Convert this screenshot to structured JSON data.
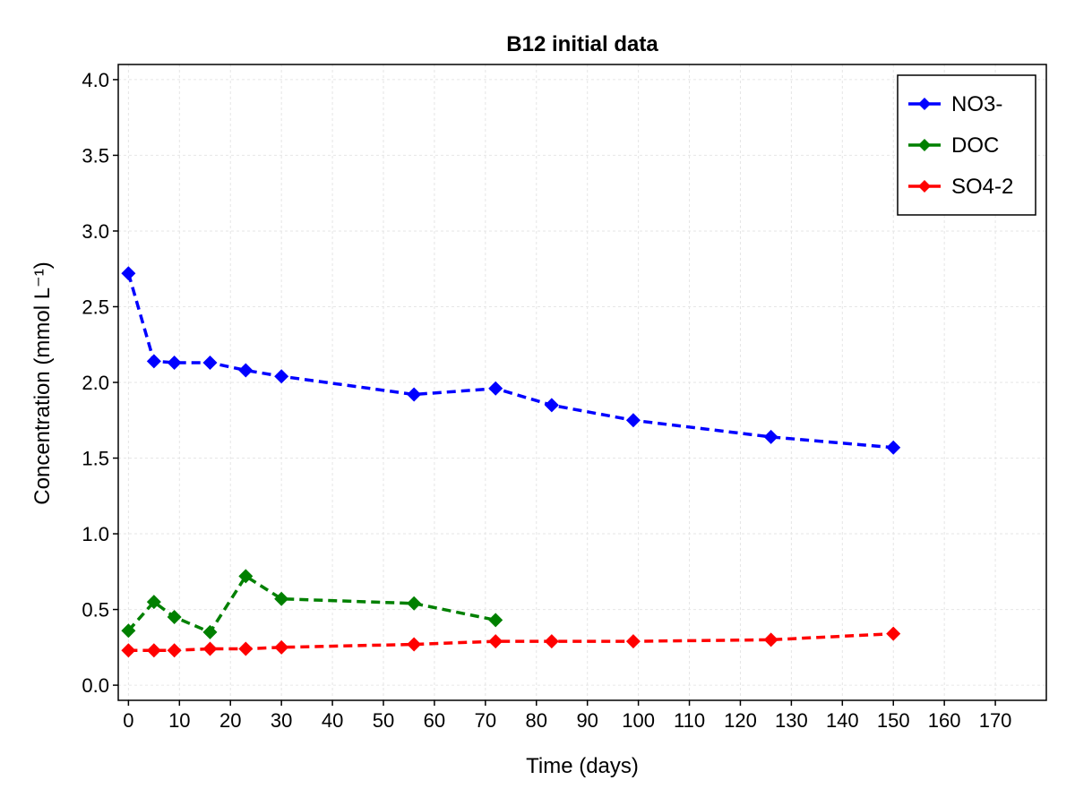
{
  "chart_data": {
    "type": "line",
    "title": "B12 initial data",
    "xlabel": "Time (days)",
    "ylabel": "Concentration (mmol L⁻¹)",
    "xlim": [
      -2,
      180
    ],
    "ylim": [
      -0.1,
      4.1
    ],
    "xticks": [
      0,
      10,
      20,
      30,
      40,
      50,
      60,
      70,
      80,
      90,
      100,
      110,
      120,
      130,
      140,
      150,
      160,
      170
    ],
    "yticks": [
      0.0,
      0.5,
      1.0,
      1.5,
      2.0,
      2.5,
      3.0,
      3.5,
      4.0
    ],
    "ytick_labels": [
      "0.0",
      "0.5",
      "1.0",
      "1.5",
      "2.0",
      "2.5",
      "3.0",
      "3.5",
      "4.0"
    ],
    "grid": true,
    "legend_position": "top-right",
    "series": [
      {
        "name": "NO3-",
        "color": "#0000ff",
        "x": [
          0,
          5,
          9,
          16,
          23,
          30,
          56,
          72,
          83,
          99,
          126,
          150
        ],
        "y": [
          2.72,
          2.14,
          2.13,
          2.13,
          2.08,
          2.04,
          1.92,
          1.96,
          1.85,
          1.75,
          1.64,
          1.57
        ]
      },
      {
        "name": "DOC",
        "color": "#008000",
        "x": [
          0,
          5,
          9,
          16,
          23,
          30,
          56,
          72
        ],
        "y": [
          0.36,
          0.55,
          0.45,
          0.35,
          0.72,
          0.57,
          0.54,
          0.43
        ]
      },
      {
        "name": "SO4-2",
        "color": "#ff0000",
        "x": [
          0,
          5,
          9,
          16,
          23,
          30,
          56,
          72,
          83,
          99,
          126,
          150
        ],
        "y": [
          0.23,
          0.23,
          0.23,
          0.24,
          0.24,
          0.25,
          0.27,
          0.29,
          0.29,
          0.29,
          0.3,
          0.34
        ]
      }
    ]
  }
}
